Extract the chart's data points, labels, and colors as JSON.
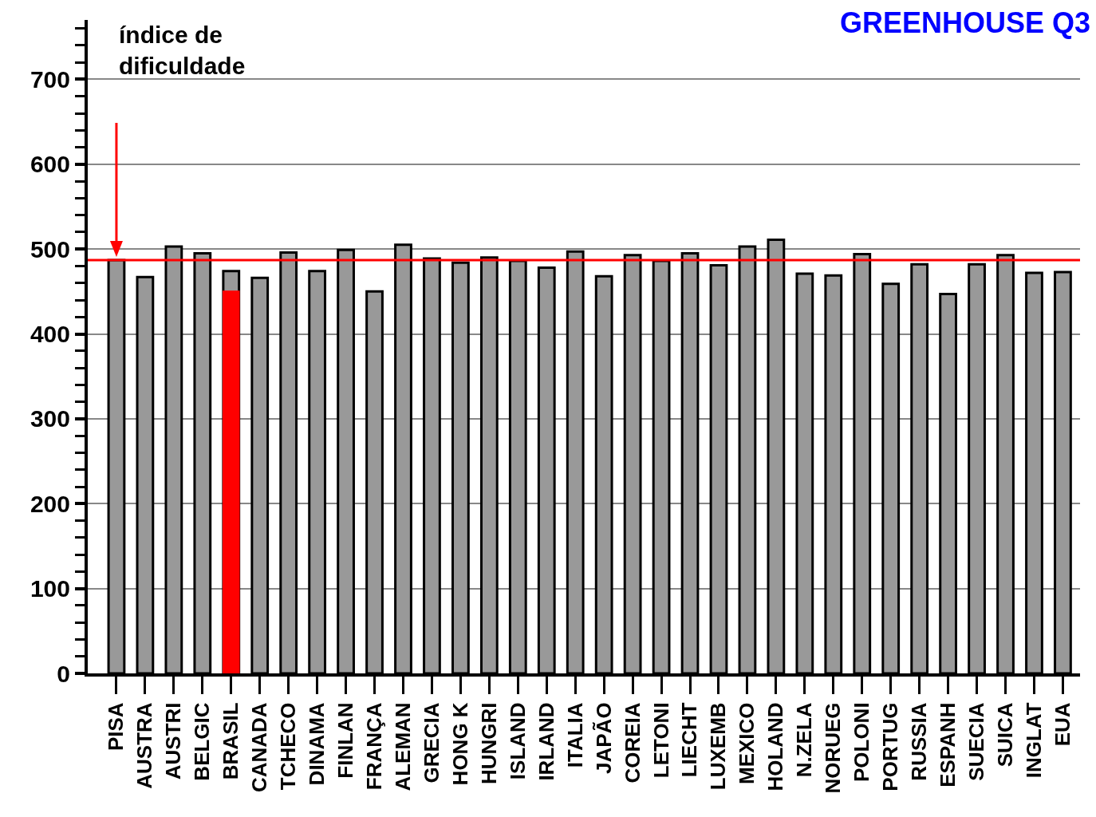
{
  "chart_data": {
    "type": "bar",
    "title": "GREENHOUSE Q3",
    "ylabel": "índice de dificuldade",
    "categories": [
      "PISA",
      "AUSTRA",
      "AUSTRI",
      "BELGIC",
      "BRASIL",
      "CANADA",
      "TCHECO",
      "DINAMA",
      "FINLAN",
      "FRANÇA",
      "ALEMAN",
      "GRECIA",
      "HONG K",
      "HUNGRI",
      "ISLAND",
      "IRLAND",
      "ITALIA",
      "JAPÃO",
      "COREIA",
      "LETONI",
      "LIECHT",
      "LUXEMB",
      "MEXICO",
      "HOLAND",
      "N.ZELA",
      "NORUEG",
      "POLONI",
      "PORTUG",
      "RUSSIA",
      "ESPANH",
      "SUECIA",
      "SUICA",
      "INGLAT",
      "EUA"
    ],
    "series": [
      {
        "color": "#999999",
        "values": [
          487,
          467,
          503,
          495,
          474,
          466,
          496,
          474,
          499,
          450,
          505,
          489,
          484,
          490,
          486,
          478,
          497,
          468,
          493,
          486,
          495,
          481,
          503,
          511,
          471,
          469,
          494,
          459,
          482,
          447,
          482,
          493,
          472,
          473
        ]
      },
      {
        "color": "#ff0000",
        "values": [
          null,
          null,
          null,
          null,
          451,
          null,
          null,
          null,
          null,
          null,
          null,
          null,
          null,
          null,
          null,
          null,
          null,
          null,
          null,
          null,
          null,
          null,
          null,
          null,
          null,
          null,
          null,
          null,
          null,
          null,
          null,
          null,
          null,
          null
        ]
      }
    ],
    "ylim": [
      0,
      770
    ],
    "yticks": [
      0,
      100,
      200,
      300,
      400,
      500,
      600,
      700
    ],
    "grid": "y",
    "ref_lines": [
      {
        "axis": "y",
        "value": 487,
        "color": "#ff0000"
      }
    ]
  }
}
